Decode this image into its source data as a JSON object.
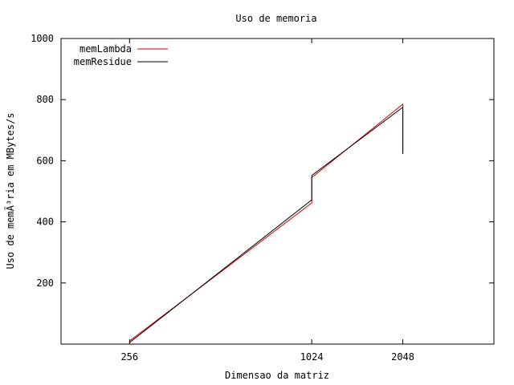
{
  "chart_data": {
    "type": "line",
    "title": "Uso de memoria",
    "xlabel": "Dimensao da matriz",
    "ylabel": "Uso de memÃ³ria em MBytes/s",
    "x_scale": "log2",
    "xlim": [
      152,
      4096
    ],
    "ylim": [
      0,
      1000
    ],
    "xticks": [
      256,
      1024,
      2048
    ],
    "yticks": [
      200,
      400,
      600,
      800,
      1000
    ],
    "grid": false,
    "legend_position": "top-left",
    "series": [
      {
        "name": "memLambda",
        "color": "#cc0000",
        "points": [
          [
            256,
            10
          ],
          [
            1024,
            462
          ],
          [
            1024,
            545
          ],
          [
            2048,
            785
          ],
          [
            2048,
            628
          ]
        ]
      },
      {
        "name": "memResidue",
        "color": "#000000",
        "points": [
          [
            256,
            5
          ],
          [
            1024,
            472
          ],
          [
            1024,
            552
          ],
          [
            2048,
            775
          ],
          [
            2048,
            622
          ]
        ]
      }
    ]
  }
}
